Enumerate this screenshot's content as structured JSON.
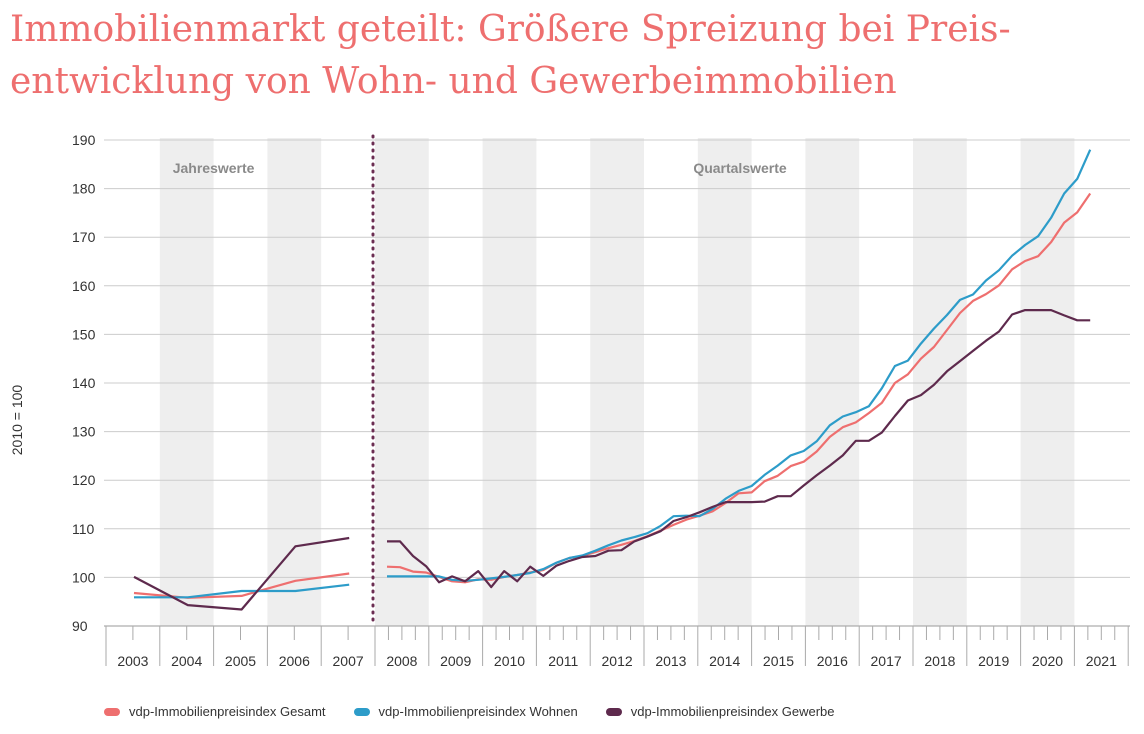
{
  "title": "Immobilienmarkt geteilt: Größere Spreizung bei Preis-entwicklung von Wohn- und Gewerbeimmobilien",
  "chart_data": {
    "type": "line",
    "ylabel": "2010 = 100",
    "ylim": [
      90,
      190
    ],
    "yticks": [
      90,
      100,
      110,
      120,
      130,
      140,
      150,
      160,
      170,
      180,
      190
    ],
    "grid": "horizontal",
    "years": [
      "2003",
      "2004",
      "2005",
      "2006",
      "2007",
      "2008",
      "2009",
      "2010",
      "2011",
      "2012",
      "2013",
      "2014",
      "2015",
      "2016",
      "2017",
      "2018",
      "2019",
      "2020",
      "2021"
    ],
    "period_labels": {
      "annual": "Jahreswerte",
      "quarterly": "Quartalswerte"
    },
    "legend_position": "bottom",
    "series": [
      {
        "name": "vdp-Immobilienpreisindex Gesamt",
        "color": "#ee6f6f",
        "annual": [
          96.8,
          95.8,
          96.2,
          99.3,
          100.8
        ],
        "quarterly": [
          102.2,
          102.1,
          101.2,
          101.0,
          100.1,
          99.2,
          99.0,
          99.6,
          99.5,
          100.1,
          100.5,
          101.0,
          101.5,
          103.0,
          104.0,
          104.4,
          105.2,
          106.0,
          106.7,
          107.5,
          108.5,
          109.6,
          110.8,
          111.9,
          112.7,
          113.6,
          115.3,
          117.3,
          117.5,
          119.8,
          120.9,
          122.9,
          123.8,
          125.9,
          128.9,
          130.9,
          131.9,
          133.8,
          135.9,
          140.0,
          141.8,
          145.0,
          147.4,
          150.9,
          154.4,
          156.9,
          158.3,
          160.1,
          163.4,
          165.1,
          166.1,
          169.0,
          173.0,
          175.1,
          179.0
        ]
      },
      {
        "name": "vdp-Immobilienpreisindex Wohnen",
        "color": "#2d9cc9",
        "annual": [
          95.9,
          95.9,
          97.2,
          97.2,
          98.5
        ],
        "quarterly": [
          100.2,
          100.2,
          100.2,
          100.2,
          100.2,
          99.5,
          99.3,
          99.5,
          99.8,
          100.1,
          100.5,
          100.9,
          101.7,
          103.0,
          104.0,
          104.5,
          105.5,
          106.6,
          107.6,
          108.3,
          109.1,
          110.6,
          112.6,
          112.7,
          112.6,
          114.1,
          116.2,
          117.8,
          118.8,
          121.1,
          123.0,
          125.1,
          126.0,
          128.0,
          131.3,
          133.1,
          134.0,
          135.2,
          138.9,
          143.5,
          144.6,
          148.1,
          151.2,
          154.0,
          157.1,
          158.2,
          161.1,
          163.2,
          166.2,
          168.4,
          170.2,
          174.0,
          179.0,
          182.0,
          188.0
        ]
      },
      {
        "name": "vdp-Immobilienpreisindex Gewerbe",
        "color": "#5e2a4d",
        "annual": [
          100.1,
          94.3,
          93.4,
          106.4,
          108.1
        ],
        "quarterly": [
          107.4,
          107.4,
          104.4,
          102.3,
          99.0,
          100.2,
          99.2,
          101.3,
          98.0,
          101.3,
          99.2,
          102.2,
          100.3,
          102.4,
          103.4,
          104.2,
          104.4,
          105.5,
          105.6,
          107.4,
          108.4,
          109.5,
          111.6,
          112.4,
          113.4,
          114.5,
          115.5,
          115.5,
          115.5,
          115.6,
          116.7,
          116.7,
          118.9,
          121.0,
          123.0,
          125.1,
          128.1,
          128.1,
          129.8,
          133.2,
          136.4,
          137.5,
          139.6,
          142.4,
          144.5,
          146.6,
          148.7,
          150.6,
          154.1,
          155.0,
          155.0,
          155.0,
          153.9,
          152.9,
          152.9
        ]
      }
    ]
  }
}
